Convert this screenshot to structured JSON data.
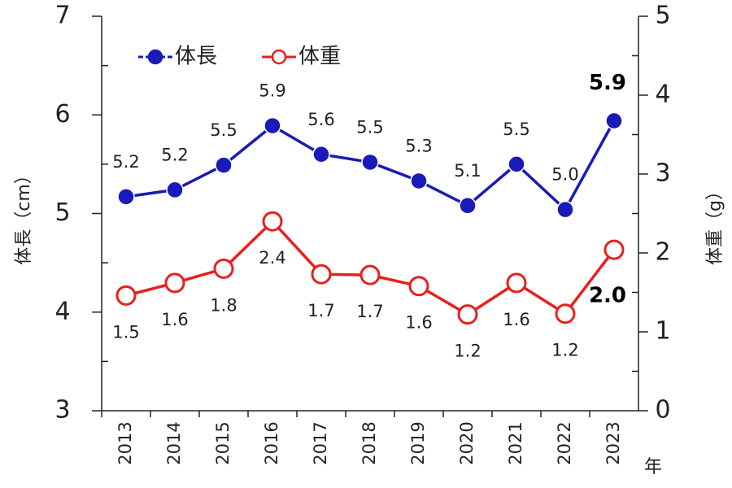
{
  "chart_data": {
    "type": "line",
    "categories": [
      "2013",
      "2014",
      "2015",
      "2016",
      "2017",
      "2018",
      "2019",
      "2020",
      "2021",
      "2022",
      "2023"
    ],
    "x_label": "年",
    "y_label": "体長（cm）",
    "y2_label": "体重（g）",
    "ylim": [
      3,
      7
    ],
    "yticks": [
      3,
      4,
      5,
      6,
      7
    ],
    "y2lim": [
      0,
      5
    ],
    "y2ticks": [
      0,
      1,
      2,
      3,
      4,
      5
    ],
    "legend": "upper left",
    "series": [
      {
        "name": "体長",
        "color": "#1a1ab8",
        "marker": "filled",
        "values": [
          5.17,
          5.24,
          5.49,
          5.89,
          5.6,
          5.52,
          5.33,
          5.08,
          5.5,
          5.04,
          5.94
        ],
        "value_labels": [
          "5.2",
          "5.2",
          "5.5",
          "5.9",
          "5.6",
          "5.5",
          "5.3",
          "5.1",
          "5.5",
          "5.0",
          "5.9"
        ]
      },
      {
        "name": "体重",
        "color": "#e8201c",
        "marker": "open",
        "axis": "y2",
        "values": [
          1.46,
          1.62,
          1.8,
          2.4,
          1.73,
          1.72,
          1.58,
          1.22,
          1.62,
          1.23,
          2.04
        ],
        "value_labels": [
          "1.5",
          "1.6",
          "1.8",
          "2.4",
          "1.7",
          "1.7",
          "1.6",
          "1.2",
          "1.6",
          "1.2",
          "2.0"
        ]
      }
    ]
  }
}
